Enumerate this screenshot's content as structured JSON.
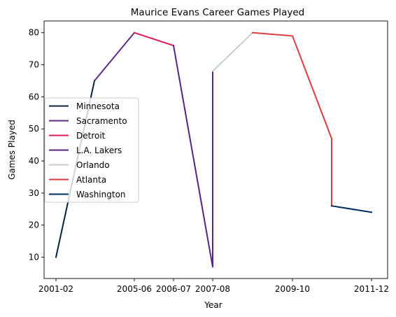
{
  "chart_data": {
    "type": "line",
    "title": "Maurice Evans  Career Games Played",
    "xlabel": "Year",
    "ylabel": "Games Played",
    "x_tick_labels": [
      "2001-02",
      "2005-06",
      "2006-07",
      "2007-08",
      "2009-10",
      "2011-12"
    ],
    "y_ticks": [
      10,
      20,
      30,
      40,
      50,
      60,
      70,
      80
    ],
    "ylim": [
      3.35,
      83.65
    ],
    "grid": false,
    "legend_position": "center-left",
    "series": [
      {
        "name": "Minnesota",
        "color": "#0C2340",
        "points": [
          [
            "2001-02",
            10
          ],
          [
            "2004-05",
            65
          ]
        ]
      },
      {
        "name": "Sacramento",
        "color": "#5A2D81",
        "points": [
          [
            "2004-05",
            65
          ],
          [
            "2005-06",
            80
          ]
        ]
      },
      {
        "name": "Detroit",
        "color": "#E01E5A",
        "points": [
          [
            "2005-06",
            80
          ],
          [
            "2006-07",
            76
          ]
        ]
      },
      {
        "name": "L.A. Lakers",
        "color": "#552583",
        "points": [
          [
            "2006-07",
            76
          ],
          [
            "2007-08",
            7
          ],
          [
            "2007-08",
            68
          ]
        ]
      },
      {
        "name": "Orlando",
        "color": "#C4CED4",
        "points": [
          [
            "2007-08",
            68
          ],
          [
            "2008-09",
            80
          ]
        ]
      },
      {
        "name": "Atlanta",
        "color": "#E03A3E",
        "points": [
          [
            "2008-09",
            80
          ],
          [
            "2009-10",
            79
          ],
          [
            "2010-11",
            47
          ],
          [
            "2010-11",
            26
          ]
        ]
      },
      {
        "name": "Washington",
        "color": "#002B5C",
        "points": [
          [
            "2010-11",
            26
          ],
          [
            "2011-12",
            24
          ]
        ]
      }
    ]
  }
}
